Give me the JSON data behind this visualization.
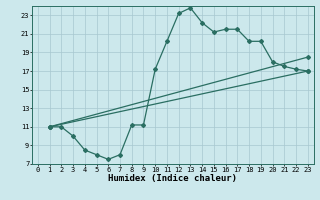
{
  "line1_x": [
    1,
    2,
    3,
    4,
    5,
    6,
    7,
    8,
    9,
    10,
    11,
    12,
    13,
    14,
    15,
    16,
    17,
    18,
    19,
    20,
    21,
    22,
    23
  ],
  "line1_y": [
    11,
    11,
    10,
    8.5,
    8,
    7.5,
    8,
    11.2,
    11.2,
    17.2,
    20.2,
    23.2,
    23.8,
    22.2,
    21.2,
    21.5,
    21.5,
    20.2,
    20.2,
    18,
    17.5,
    17.2,
    17
  ],
  "line2_x": [
    1,
    23
  ],
  "line2_y": [
    11,
    18.5
  ],
  "line3_x": [
    1,
    23
  ],
  "line3_y": [
    11,
    17
  ],
  "color": "#2a6e62",
  "bg_color": "#cce8ec",
  "grid_color": "#a8c8d0",
  "xlabel": "Humidex (Indice chaleur)",
  "xlim": [
    -0.5,
    23.5
  ],
  "ylim": [
    7,
    24
  ],
  "xticks": [
    0,
    1,
    2,
    3,
    4,
    5,
    6,
    7,
    8,
    9,
    10,
    11,
    12,
    13,
    14,
    15,
    16,
    17,
    18,
    19,
    20,
    21,
    22,
    23
  ],
  "yticks": [
    7,
    9,
    11,
    13,
    15,
    17,
    19,
    21,
    23
  ],
  "marker": "D",
  "markersize": 2.0,
  "linewidth": 0.9,
  "xlabel_fontsize": 6.5,
  "tick_fontsize": 5.0
}
